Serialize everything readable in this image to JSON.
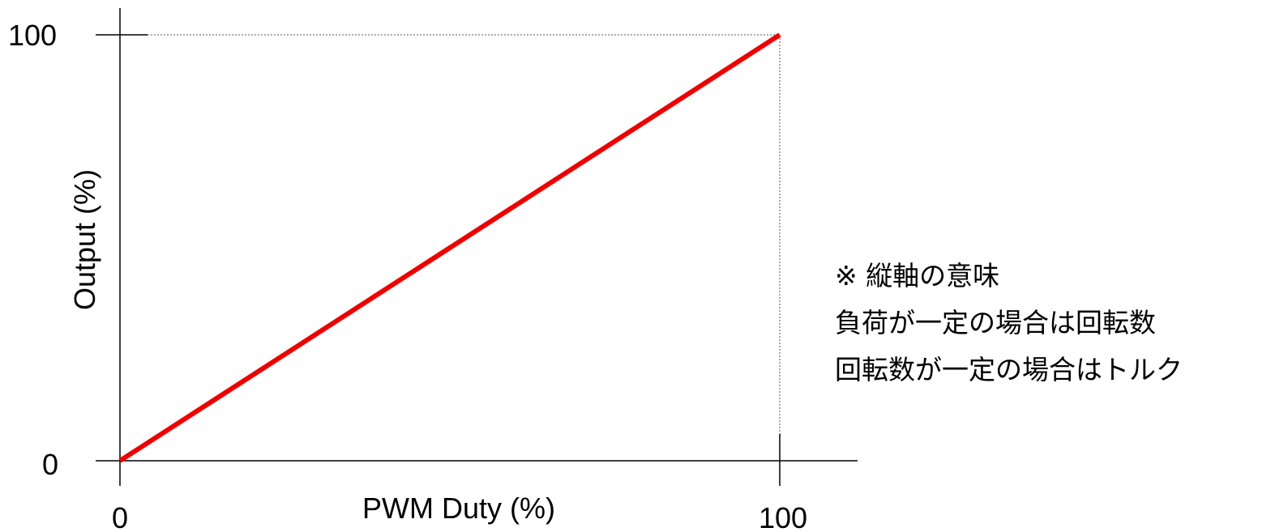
{
  "chart_data": {
    "type": "line",
    "xlabel": "PWM Duty (%)",
    "ylabel": "Output (%)",
    "xlim": [
      0,
      100
    ],
    "ylim": [
      0,
      100
    ],
    "x_ticks": [
      "0",
      "100"
    ],
    "y_ticks": [
      "0",
      "100"
    ],
    "grid": false,
    "series": [
      {
        "x": [
          0,
          100
        ],
        "y": [
          0,
          100
        ],
        "color": "#ee0000"
      }
    ],
    "reference_lines": "dotted guides from (100,100) to each axis"
  },
  "note": {
    "title": "※ 縦軸の意味",
    "line1": "負荷が一定の場合は回転数",
    "line2": "回転数が一定の場合はトルク"
  }
}
